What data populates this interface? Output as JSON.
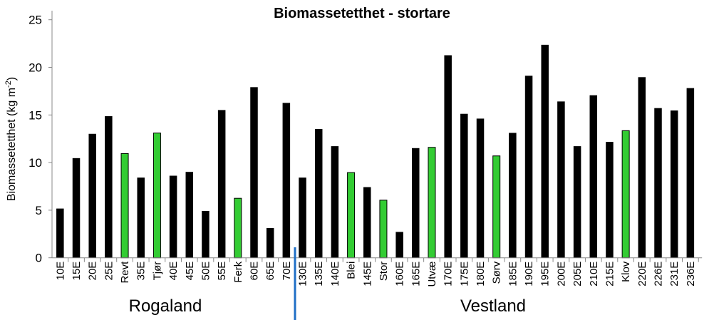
{
  "chart_data": {
    "type": "bar",
    "title": "Biomassetetthet - stortare",
    "ylabel": "Biomassetetthet  (kg m",
    "ylabel_sup": "-2",
    "ylabel_close": ")",
    "xlabel": "",
    "ylim": [
      0,
      25
    ],
    "yticks": [
      0,
      5,
      10,
      15,
      20,
      25
    ],
    "grid": false,
    "categories": [
      "10E",
      "15E",
      "20E",
      "25E",
      "Revt",
      "35E",
      "Tjør",
      "40E",
      "45E",
      "50E",
      "55E",
      "Ferk",
      "60E",
      "65E",
      "70E",
      "130E",
      "135E",
      "140E",
      "Blei",
      "145E",
      "Stor",
      "160E",
      "165E",
      "Utvæ",
      "170E",
      "175E",
      "180E",
      "Sørv",
      "185E",
      "190E",
      "195E",
      "200E",
      "205E",
      "210E",
      "215E",
      "Klov",
      "220E",
      "226E",
      "231E",
      "236E"
    ],
    "values": [
      5.15,
      10.45,
      13.0,
      14.85,
      10.95,
      8.4,
      13.1,
      8.6,
      9.0,
      4.9,
      15.5,
      6.25,
      17.9,
      3.1,
      16.25,
      8.4,
      13.5,
      11.7,
      8.95,
      7.4,
      6.05,
      2.7,
      11.5,
      11.6,
      21.25,
      15.1,
      14.6,
      10.7,
      13.1,
      19.1,
      22.35,
      16.4,
      11.7,
      17.05,
      12.15,
      13.35,
      18.95,
      15.7,
      15.45,
      17.8
    ],
    "highlighted": [
      "Revt",
      "Tjør",
      "Ferk",
      "Blei",
      "Stor",
      "Utvæ",
      "Sørv",
      "Klov"
    ],
    "colors": {
      "default": "#000000",
      "highlighted": "#33cc33",
      "divider": "#1f6fc6"
    },
    "regions": [
      {
        "label": "Rogaland",
        "from": "10E",
        "to": "70E"
      },
      {
        "label": "Vestland",
        "from": "130E",
        "to": "236E"
      }
    ]
  }
}
